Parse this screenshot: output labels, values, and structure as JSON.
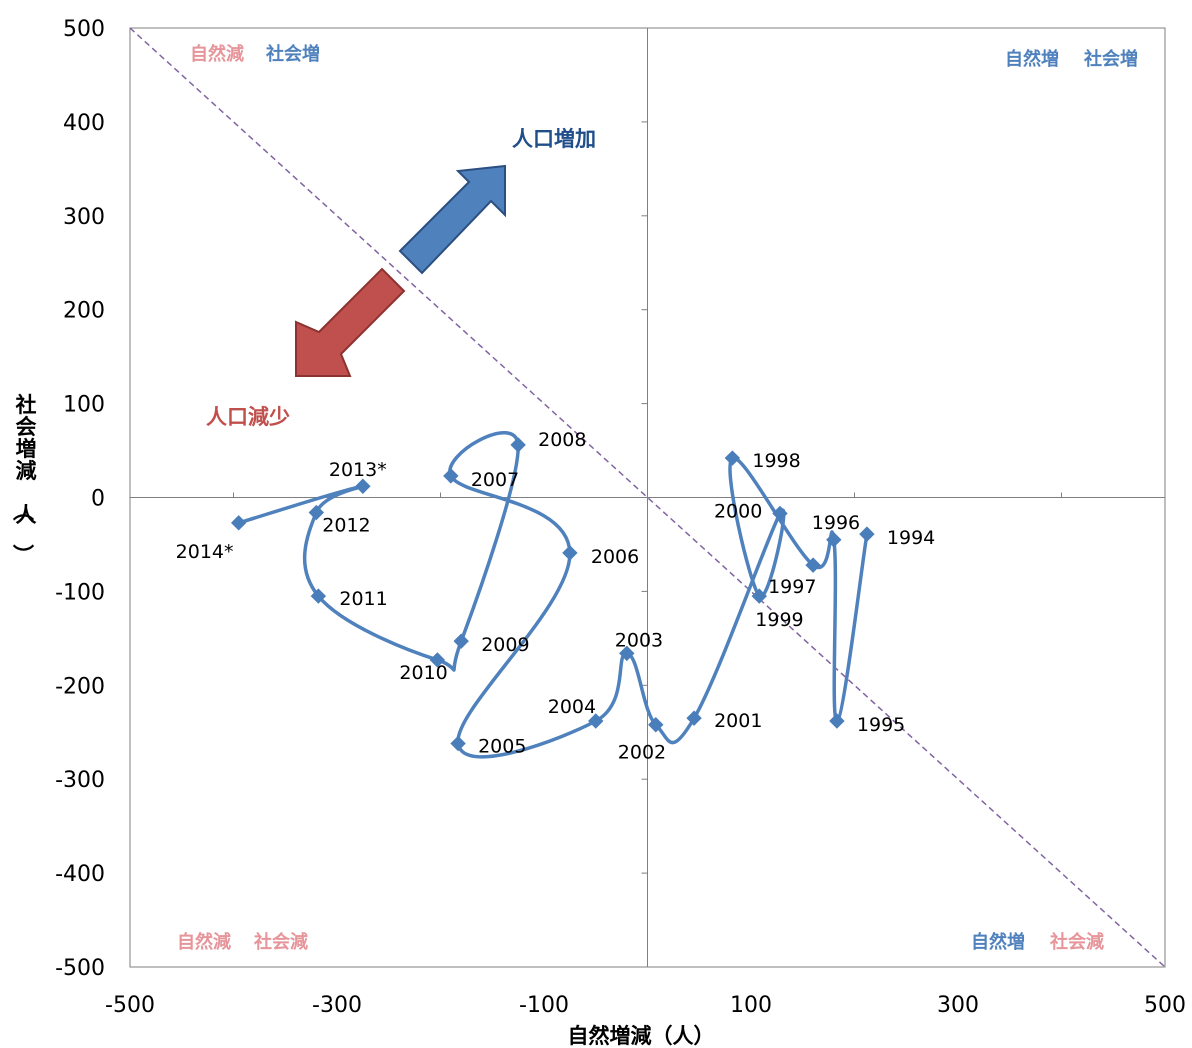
{
  "colors": {
    "series": "#4f81bd",
    "marker": "#4a7ebb",
    "increase": "#4f81bd",
    "increase_dark": "#2b4f80",
    "increase_text": "#1f4e8a",
    "decrease": "#c0504d",
    "decrease_dark": "#8c3230",
    "decrease_text": "#c0504d",
    "quad_minus": "#e6959a",
    "quad_plus": "#4f81bd",
    "diagonal": "#8064a2"
  },
  "chart_data": {
    "type": "scatter",
    "connected": true,
    "smooth": true,
    "xlabel": "自然増減（人）",
    "ylabel": "社会増減（人）",
    "xlim": [
      -500,
      500
    ],
    "ylim": [
      -500,
      500
    ],
    "xticks": [
      -500,
      -300,
      -100,
      100,
      300,
      500
    ],
    "yticks": [
      500,
      400,
      300,
      200,
      100,
      0,
      -100,
      -200,
      -300,
      -400,
      -500
    ],
    "grid": false,
    "marker": "diamond",
    "points": [
      {
        "label": "1994",
        "x": 212,
        "y": -39
      },
      {
        "label": "1995",
        "x": 183,
        "y": -238
      },
      {
        "label": "1996",
        "x": 180,
        "y": -45
      },
      {
        "label": "1997",
        "x": 160,
        "y": -72
      },
      {
        "label": "1998",
        "x": 82,
        "y": 42
      },
      {
        "label": "1999",
        "x": 108,
        "y": -105
      },
      {
        "label": "2000",
        "x": 128,
        "y": -17
      },
      {
        "label": "2001",
        "x": 45,
        "y": -235
      },
      {
        "label": "2002",
        "x": 8,
        "y": -242
      },
      {
        "label": "2003",
        "x": -20,
        "y": -166
      },
      {
        "label": "2004",
        "x": -50,
        "y": -238
      },
      {
        "label": "2005",
        "x": -183,
        "y": -262
      },
      {
        "label": "2006",
        "x": -75,
        "y": -59
      },
      {
        "label": "2007",
        "x": -190,
        "y": 23
      },
      {
        "label": "2008",
        "x": -125,
        "y": 56
      },
      {
        "label": "2009",
        "x": -180,
        "y": -153
      },
      {
        "label": "2010",
        "x": -203,
        "y": -173
      },
      {
        "label": "2011",
        "x": -318,
        "y": -105
      },
      {
        "label": "2012",
        "x": -320,
        "y": -16
      },
      {
        "label": "2013*",
        "x": -275,
        "y": 12
      },
      {
        "label": "2014*",
        "x": -395,
        "y": -27
      }
    ],
    "reference_line": {
      "from": [
        -500,
        500
      ],
      "to": [
        500,
        -500
      ],
      "style": "dashed"
    },
    "quadrant_labels": {
      "top_left": [
        "自然減",
        "社会増"
      ],
      "top_right": [
        "自然増",
        "社会増"
      ],
      "bottom_left": [
        "自然減",
        "社会減"
      ],
      "bottom_right": [
        "自然増",
        "社会減"
      ]
    },
    "annotations": {
      "increase": "人口増加",
      "decrease": "人口減少"
    }
  }
}
